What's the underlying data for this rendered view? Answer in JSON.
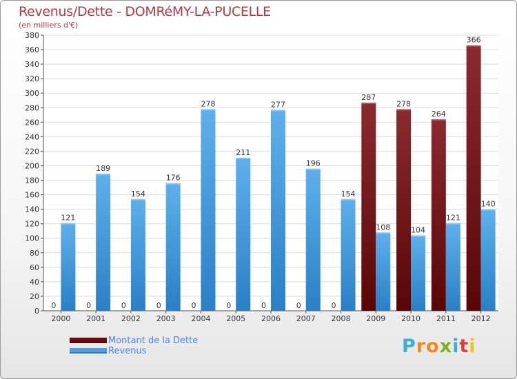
{
  "header": {
    "title": "Revenus/Dette - DOMRéMY-LA-PUCELLE",
    "subtitle": "(en milliers d'€)"
  },
  "legend": {
    "items": [
      {
        "label": "Montant de la Dette",
        "color": "#6b0a0a"
      },
      {
        "label": "Revenus",
        "color": "#4a9fe0"
      }
    ]
  },
  "logo": {
    "letters": [
      "P",
      "r",
      "o",
      "x",
      "i",
      "t",
      "i"
    ],
    "colors": [
      "#3aaed8",
      "#f08a1c",
      "#f08a1c",
      "#7ab51d",
      "#3aaed8",
      "#e33d3d",
      "#f0c419"
    ]
  },
  "chart_data": {
    "type": "bar",
    "categories": [
      "2000",
      "2001",
      "2002",
      "2003",
      "2004",
      "2005",
      "2006",
      "2007",
      "2008",
      "2009",
      "2010",
      "2011",
      "2012"
    ],
    "series": [
      {
        "name": "Montant de la Dette",
        "color": "#6b0a0a",
        "values": [
          0,
          0,
          0,
          0,
          0,
          0,
          0,
          0,
          0,
          287,
          278,
          264,
          366
        ]
      },
      {
        "name": "Revenus",
        "color": "#4a9fe0",
        "values": [
          121,
          189,
          154,
          176,
          278,
          211,
          277,
          196,
          154,
          108,
          104,
          121,
          140
        ]
      }
    ],
    "ylim": [
      0,
      380
    ],
    "ytick_step": 20,
    "grid": true,
    "legend_position": "bottom-left"
  }
}
